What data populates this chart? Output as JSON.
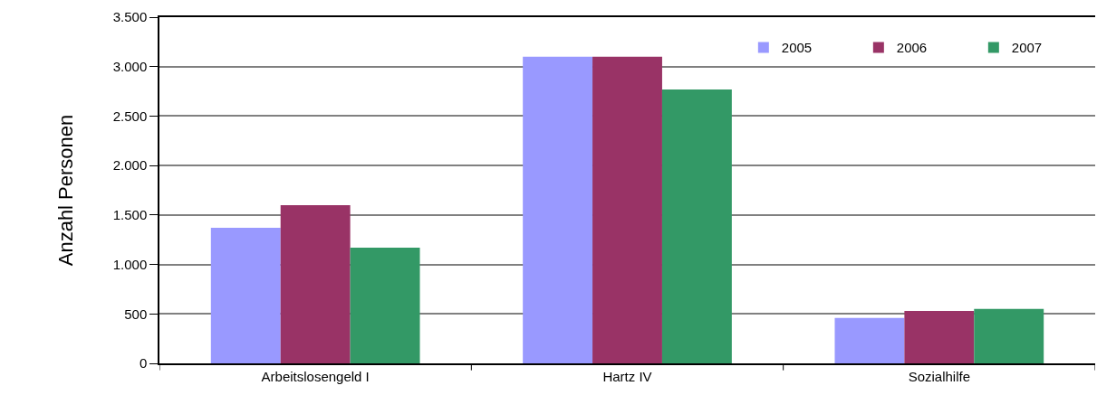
{
  "chart_data": {
    "type": "bar",
    "ylabel": "Anzahl Personen",
    "categories": [
      "Arbeitslosengeld I",
      "Hartz IV",
      "Sozialhilfe"
    ],
    "series": [
      {
        "name": "2005",
        "color": "#9999ff",
        "values": [
          1370,
          3100,
          460
        ]
      },
      {
        "name": "2006",
        "color": "#993366",
        "values": [
          1600,
          3100,
          530
        ]
      },
      {
        "name": "2007",
        "color": "#339966",
        "values": [
          1170,
          2770,
          550
        ]
      }
    ],
    "ylim": [
      0,
      3500
    ],
    "yticks": [
      0,
      500,
      {
        "value": 1000,
        "label": "1.000"
      },
      {
        "value": 1500,
        "label": "1.500"
      },
      {
        "value": 2000,
        "label": "2.000"
      },
      {
        "value": 2500,
        "label": "2.500"
      },
      {
        "value": 3000,
        "label": "3.000"
      },
      {
        "value": 3500,
        "label": "3.500"
      }
    ],
    "grid": "y",
    "legend": "top right"
  }
}
